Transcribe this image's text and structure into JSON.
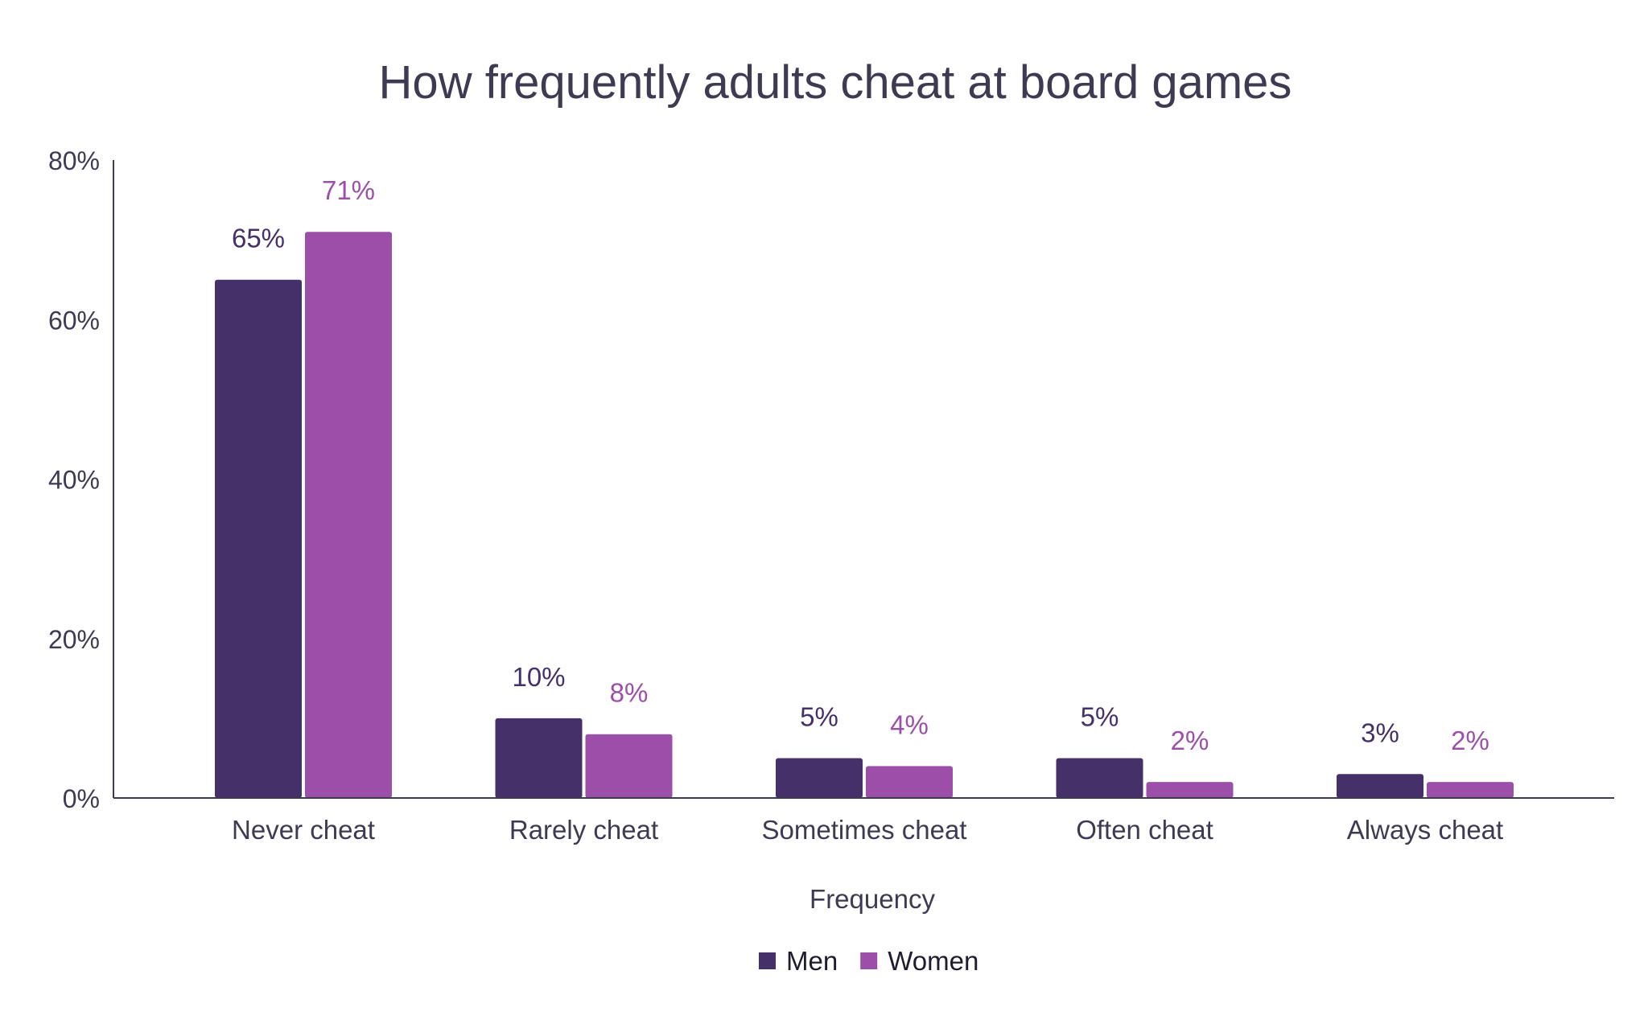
{
  "chart_data": {
    "type": "bar",
    "title": "How frequently adults cheat at board games",
    "xlabel": "Frequency",
    "ylabel": "",
    "categories": [
      "Never cheat",
      "Rarely cheat",
      "Sometimes cheat",
      "Often cheat",
      "Always cheat"
    ],
    "series": [
      {
        "name": "Men",
        "values": [
          65,
          10,
          5,
          5,
          3
        ],
        "labels": [
          "65%",
          "10%",
          "5%",
          "5%",
          "3%"
        ],
        "color": "#45306a"
      },
      {
        "name": "Women",
        "values": [
          71,
          8,
          4,
          2,
          2
        ],
        "labels": [
          "71%",
          "8%",
          "4%",
          "2%",
          "2%"
        ],
        "color": "#9c4fa8"
      }
    ],
    "ylim": [
      0,
      80
    ],
    "yticks": [
      "0%",
      "20%",
      "40%",
      "60%",
      "80%"
    ],
    "ytick_values": [
      0,
      20,
      40,
      60,
      80
    ],
    "grid": false,
    "legend": "bottom-center",
    "text_color": "#3d3a52"
  }
}
